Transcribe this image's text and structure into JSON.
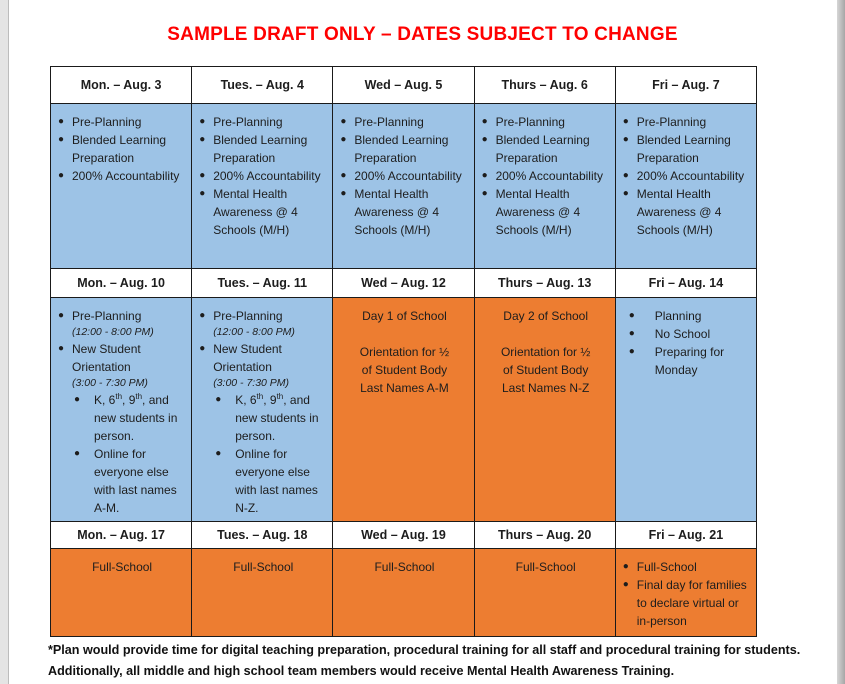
{
  "page": {
    "title": "SAMPLE DRAFT ONLY – DATES SUBJECT TO CHANGE",
    "title_color": "#FF0000",
    "footnote_line1": "*Plan would provide time for digital teaching preparation, procedural training for all staff and procedural training for students.",
    "footnote_line2": "Additionally, all middle and high school team members would receive Mental Health Awareness Training."
  },
  "colors": {
    "blue": "#9DC3E6",
    "orange": "#ED7D31",
    "border": "#1a1a1a",
    "header_bg": "#ffffff"
  },
  "weeks": [
    {
      "headers": [
        "Mon. – Aug. 3",
        "Tues. – Aug. 4",
        "Wed – Aug. 5",
        "Thurs – Aug. 6",
        "Fri – Aug. 7"
      ],
      "cells": [
        {
          "bg": "blue",
          "blocks": [
            {
              "t": "bullet",
              "text": "Pre-Planning"
            },
            {
              "t": "bullet",
              "text": "Blended Learning Preparation"
            },
            {
              "t": "bullet",
              "text": "200% Accountability"
            }
          ]
        },
        {
          "bg": "blue",
          "blocks": [
            {
              "t": "bullet",
              "text": "Pre-Planning"
            },
            {
              "t": "bullet",
              "text": "Blended Learning Preparation"
            },
            {
              "t": "bullet",
              "text": "200% Accountability"
            },
            {
              "t": "bullet",
              "text": "Mental Health Awareness @ 4 Schools (M/H)"
            }
          ]
        },
        {
          "bg": "blue",
          "blocks": [
            {
              "t": "bullet",
              "text": "Pre-Planning"
            },
            {
              "t": "bullet",
              "text": "Blended Learning Preparation"
            },
            {
              "t": "bullet",
              "text": "200% Accountability"
            },
            {
              "t": "bullet",
              "text": "Mental Health Awareness @ 4 Schools (M/H)"
            }
          ]
        },
        {
          "bg": "blue",
          "blocks": [
            {
              "t": "bullet",
              "text": "Pre-Planning"
            },
            {
              "t": "bullet",
              "text": "Blended Learning Preparation"
            },
            {
              "t": "bullet",
              "text": "200% Accountability"
            },
            {
              "t": "bullet",
              "text": "Mental Health Awareness @ 4 Schools (M/H)"
            }
          ]
        },
        {
          "bg": "blue",
          "blocks": [
            {
              "t": "bullet",
              "text": "Pre-Planning"
            },
            {
              "t": "bullet",
              "text": "Blended Learning Preparation"
            },
            {
              "t": "bullet",
              "text": "200% Accountability"
            },
            {
              "t": "bullet",
              "text": "Mental Health Awareness @ 4 Schools (M/H)"
            }
          ]
        }
      ]
    },
    {
      "headers": [
        "Mon. – Aug. 10",
        "Tues. – Aug. 11",
        "Wed – Aug. 12",
        "Thurs – Aug. 13",
        "Fri – Aug. 14"
      ],
      "cells": [
        {
          "bg": "blue",
          "blocks": [
            {
              "t": "bullet",
              "text": "Pre-Planning"
            },
            {
              "t": "italic",
              "text": "(12:00 - 8:00 PM)"
            },
            {
              "t": "bullet",
              "text": "New Student Orientation"
            },
            {
              "t": "italic",
              "text": "(3:00 - 7:30 PM)"
            },
            {
              "t": "sub",
              "text": "K, 6^th^, 9^th^, and new students in person."
            },
            {
              "t": "sub",
              "text": "Online for everyone else with last names A-M."
            }
          ]
        },
        {
          "bg": "blue",
          "blocks": [
            {
              "t": "bullet",
              "text": "Pre-Planning"
            },
            {
              "t": "italic",
              "text": "(12:00 - 8:00 PM)"
            },
            {
              "t": "bullet",
              "text": "New Student Orientation"
            },
            {
              "t": "italic",
              "text": "(3:00 - 7:30 PM)"
            },
            {
              "t": "sub",
              "text": "K, 6^th^, 9^th^, and new students in person."
            },
            {
              "t": "sub",
              "text": "Online for everyone else with last names N-Z."
            }
          ]
        },
        {
          "bg": "orange",
          "blocks": [
            {
              "t": "center",
              "text": "Day 1 of School"
            },
            {
              "t": "gap",
              "text": ""
            },
            {
              "t": "center",
              "text": "Orientation for ½"
            },
            {
              "t": "center",
              "text": "of Student Body"
            },
            {
              "t": "center",
              "text": "Last Names A-M"
            }
          ]
        },
        {
          "bg": "orange",
          "blocks": [
            {
              "t": "center",
              "text": "Day 2 of School"
            },
            {
              "t": "gap",
              "text": ""
            },
            {
              "t": "center",
              "text": "Orientation for ½"
            },
            {
              "t": "center",
              "text": "of Student Body"
            },
            {
              "t": "center",
              "text": "Last Names N-Z"
            }
          ]
        },
        {
          "bg": "blue",
          "blocks": [
            {
              "t": "bulletw",
              "text": "Planning"
            },
            {
              "t": "bulletw",
              "text": "No School"
            },
            {
              "t": "bulletw",
              "text": "Preparing for Monday"
            }
          ]
        }
      ]
    },
    {
      "headers": [
        "Mon. – Aug. 17",
        "Tues. – Aug. 18",
        "Wed – Aug. 19",
        "Thurs – Aug. 20",
        "Fri – Aug. 21"
      ],
      "cells": [
        {
          "bg": "orange",
          "blocks": [
            {
              "t": "center",
              "text": "Full-School"
            }
          ]
        },
        {
          "bg": "orange",
          "blocks": [
            {
              "t": "center",
              "text": "Full-School"
            }
          ]
        },
        {
          "bg": "orange",
          "blocks": [
            {
              "t": "center",
              "text": "Full-School"
            }
          ]
        },
        {
          "bg": "orange",
          "blocks": [
            {
              "t": "center",
              "text": "Full-School"
            }
          ]
        },
        {
          "bg": "orange",
          "blocks": [
            {
              "t": "bullet",
              "text": "Full-School"
            },
            {
              "t": "bullet",
              "text": "Final day for families to declare virtual or in-person"
            }
          ]
        }
      ]
    }
  ]
}
